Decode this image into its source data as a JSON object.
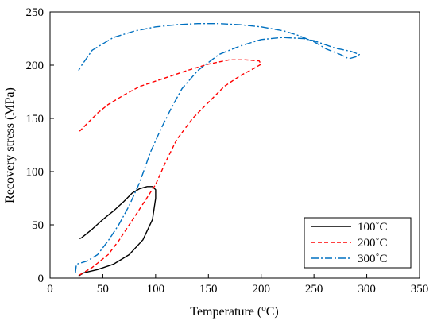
{
  "chart_data": {
    "type": "line",
    "xlabel": "Temperature (",
    "xlabel_sup": "o",
    "xlabel_suffix": "C)",
    "ylabel": "Recovery stress (MPa)",
    "xlim": [
      0,
      350
    ],
    "ylim": [
      0,
      250
    ],
    "xticks": [
      0,
      50,
      100,
      150,
      200,
      250,
      300,
      350
    ],
    "yticks": [
      0,
      50,
      100,
      150,
      200,
      250
    ],
    "grid": false,
    "legend_position": "bottom-right",
    "series": [
      {
        "name": "100˚C",
        "color": "#000000",
        "dash": "solid",
        "points": [
          [
            27,
            2
          ],
          [
            32,
            5
          ],
          [
            45,
            8
          ],
          [
            60,
            13
          ],
          [
            75,
            22
          ],
          [
            88,
            36
          ],
          [
            97,
            55
          ],
          [
            100,
            75
          ],
          [
            100,
            83
          ],
          [
            97,
            86
          ],
          [
            92,
            86
          ],
          [
            85,
            84
          ],
          [
            78,
            80
          ],
          [
            70,
            72
          ],
          [
            60,
            63
          ],
          [
            50,
            55
          ],
          [
            40,
            46
          ],
          [
            30,
            38
          ],
          [
            28,
            37
          ]
        ]
      },
      {
        "name": "200˚C",
        "color": "#ff0000",
        "dash": "dashed",
        "points": [
          [
            28,
            3
          ],
          [
            40,
            10
          ],
          [
            55,
            22
          ],
          [
            65,
            35
          ],
          [
            75,
            50
          ],
          [
            85,
            65
          ],
          [
            100,
            88
          ],
          [
            110,
            110
          ],
          [
            120,
            130
          ],
          [
            135,
            150
          ],
          [
            150,
            165
          ],
          [
            165,
            180
          ],
          [
            180,
            190
          ],
          [
            195,
            198
          ],
          [
            200,
            201
          ],
          [
            198,
            204
          ],
          [
            185,
            205
          ],
          [
            170,
            205
          ],
          [
            160,
            203
          ],
          [
            150,
            201
          ],
          [
            130,
            195
          ],
          [
            115,
            190
          ],
          [
            100,
            185
          ],
          [
            85,
            180
          ],
          [
            70,
            172
          ],
          [
            55,
            163
          ],
          [
            45,
            155
          ],
          [
            35,
            145
          ],
          [
            28,
            138
          ]
        ]
      },
      {
        "name": "300˚C",
        "color": "#0070c0",
        "dash": "dashdot",
        "points": [
          [
            24,
            5
          ],
          [
            25,
            13
          ],
          [
            35,
            16
          ],
          [
            45,
            22
          ],
          [
            55,
            35
          ],
          [
            65,
            50
          ],
          [
            75,
            68
          ],
          [
            85,
            90
          ],
          [
            95,
            118
          ],
          [
            105,
            140
          ],
          [
            115,
            160
          ],
          [
            125,
            178
          ],
          [
            140,
            195
          ],
          [
            160,
            210
          ],
          [
            180,
            218
          ],
          [
            200,
            224
          ],
          [
            220,
            226
          ],
          [
            240,
            225
          ],
          [
            250,
            223
          ],
          [
            270,
            216
          ],
          [
            285,
            213
          ],
          [
            293,
            210
          ],
          [
            290,
            208
          ],
          [
            283,
            206
          ],
          [
            275,
            210
          ],
          [
            262,
            215
          ],
          [
            250,
            222
          ],
          [
            235,
            228
          ],
          [
            222,
            232
          ],
          [
            200,
            236
          ],
          [
            180,
            238
          ],
          [
            160,
            239
          ],
          [
            140,
            239
          ],
          [
            120,
            238
          ],
          [
            100,
            236
          ],
          [
            80,
            232
          ],
          [
            60,
            226
          ],
          [
            40,
            214
          ],
          [
            30,
            200
          ],
          [
            27,
            195
          ]
        ]
      }
    ]
  }
}
